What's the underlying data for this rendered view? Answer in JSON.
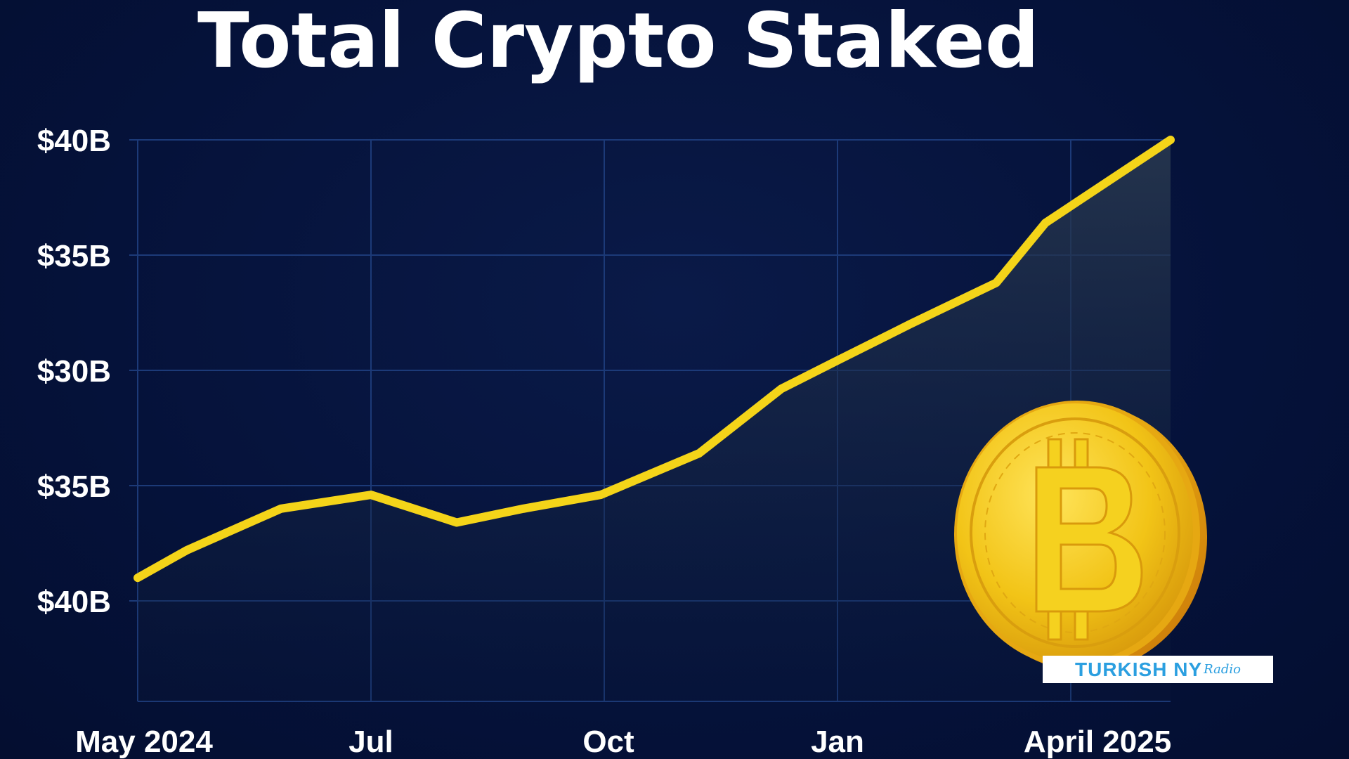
{
  "chart_data": {
    "type": "area",
    "title": "Total Crypto Staked",
    "xlabel": "",
    "ylabel": "",
    "x_tick_labels": [
      "May 2024",
      "Jul",
      "Oct",
      "Jan",
      "April 2025"
    ],
    "y_tick_labels": [
      "$40B",
      "$35B",
      "$30B",
      "$35B",
      "$40B"
    ],
    "grid": true,
    "line_color": "#f4d419",
    "series": [
      {
        "values": [
          0.05,
          0.11,
          0.2,
          0.23,
          0.17,
          0.2,
          0.23,
          0.32,
          0.46,
          0.52,
          0.6,
          0.69,
          0.82,
          1.0
        ]
      }
    ]
  },
  "watermark": {
    "main": "TURKISH NY",
    "sub": "Radio"
  },
  "colors": {
    "background": "#06143a",
    "grid": "#1c3a78",
    "line": "#f4d419",
    "coin": "#f2c417",
    "watermark_text": "#2b9fe0"
  }
}
